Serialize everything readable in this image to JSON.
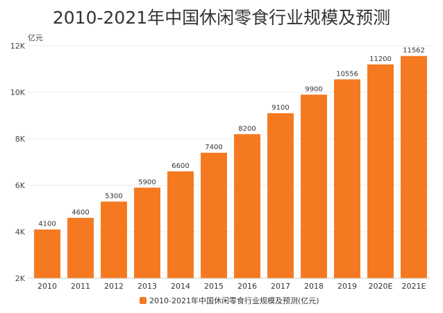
{
  "chart_data": {
    "type": "bar",
    "title": "2010-2021年中国休闲零食行业规模及预测",
    "ylabel": "亿元",
    "xlabel": "",
    "categories": [
      "2010",
      "2011",
      "2012",
      "2013",
      "2014",
      "2015",
      "2016",
      "2017",
      "2018",
      "2019",
      "2020E",
      "2021E"
    ],
    "series": [
      {
        "name": "2010-2021年中国休闲零食行业规模及预测(亿元)",
        "values": [
          4100,
          4600,
          5300,
          5900,
          6600,
          7400,
          8200,
          9100,
          9900,
          10556,
          11200,
          11562
        ],
        "color": "#f47920"
      }
    ],
    "ylim": [
      2000,
      12000
    ],
    "yticks": [
      2000,
      4000,
      6000,
      8000,
      10000,
      12000
    ],
    "ytick_labels": [
      "2K",
      "4K",
      "6K",
      "8K",
      "10K",
      "12K"
    ],
    "grid": true,
    "legend": "bottom-center"
  }
}
